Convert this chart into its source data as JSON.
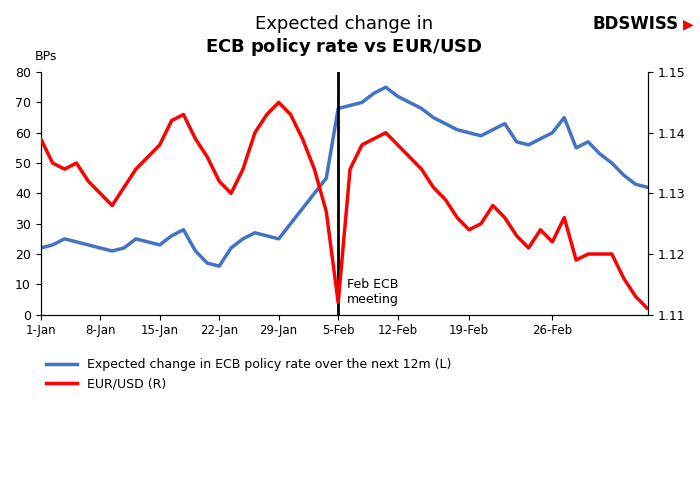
{
  "title_line1": "Expected change in",
  "title_line2": "ECB policy rate vs EUR/USD",
  "ylabel_left": "BPs",
  "ylim_left": [
    0,
    80
  ],
  "ylim_right": [
    1.11,
    1.15
  ],
  "yticks_left": [
    0,
    10,
    20,
    30,
    40,
    50,
    60,
    70,
    80
  ],
  "yticks_right": [
    1.11,
    1.12,
    1.13,
    1.14,
    1.15
  ],
  "legend1": "Expected change in ECB policy rate over the next 12m (L)",
  "legend2": "EUR/USD (R)",
  "color_blue": "#4472C4",
  "color_red": "#FF0000",
  "vline_label": "Feb ECB\nmeeting",
  "vline_date_index": 25,
  "xtick_positions": [
    0,
    5,
    10,
    15,
    20,
    25,
    30,
    36,
    43
  ],
  "xtick_labels": [
    "1-Jan",
    "8-Jan",
    "15-Jan",
    "22-Jan",
    "29-Jan",
    "5-Feb",
    "12-Feb",
    "19-Feb",
    "26-Feb"
  ],
  "ecb_rate": [
    22,
    23,
    25,
    24,
    23,
    22,
    21,
    22,
    25,
    24,
    23,
    26,
    28,
    21,
    17,
    16,
    22,
    25,
    27,
    26,
    25,
    30,
    35,
    40,
    45,
    68,
    69,
    70,
    73,
    75,
    72,
    70,
    68,
    65,
    63,
    61,
    60,
    59,
    61,
    63,
    57,
    56,
    58,
    60,
    65,
    55,
    57,
    53,
    50,
    46,
    43,
    42
  ],
  "eurusd": [
    1.139,
    1.135,
    1.134,
    1.135,
    1.132,
    1.13,
    1.128,
    1.131,
    1.134,
    1.136,
    1.138,
    1.142,
    1.143,
    1.139,
    1.136,
    1.132,
    1.13,
    1.134,
    1.14,
    1.143,
    1.145,
    1.143,
    1.139,
    1.134,
    1.127,
    1.112,
    1.134,
    1.138,
    1.139,
    1.14,
    1.138,
    1.136,
    1.134,
    1.131,
    1.129,
    1.126,
    1.124,
    1.125,
    1.128,
    1.126,
    1.123,
    1.121,
    1.124,
    1.122,
    1.126,
    1.119,
    1.12,
    1.12,
    1.12,
    1.116,
    1.113,
    1.111
  ],
  "n_points": 52,
  "bdswiss_text": "BDSWISS",
  "bdswiss_arrow": "▶"
}
